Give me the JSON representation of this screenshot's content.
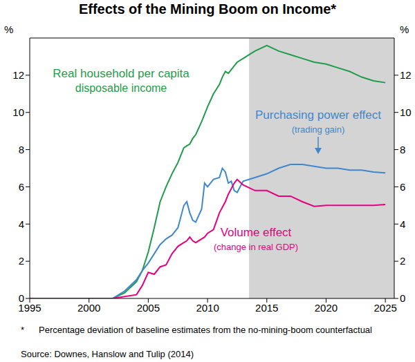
{
  "chart_data": {
    "type": "line",
    "title": "Effects of the Mining Boom on Income*",
    "y_label": "%",
    "footnote": {
      "mark": "*",
      "text": "Percentage deviation of baseline estimates from the no-mining-boom counterfactual"
    },
    "source": "Source: Downes, Hanslow and Tulip (2014)",
    "x": [
      1995,
      2002,
      2003,
      2004,
      2004.5,
      2005,
      2005.5,
      2006,
      2006.5,
      2007,
      2007.5,
      2008,
      2008.25,
      2008.5,
      2008.75,
      2009,
      2009.5,
      2009.75,
      2010,
      2010.5,
      2011,
      2011.25,
      2011.5,
      2011.75,
      2012,
      2012.25,
      2012.5,
      2013,
      2014,
      2015,
      2016,
      2017,
      2018,
      2019,
      2020,
      2021,
      2022,
      2023,
      2024,
      2025
    ],
    "xlim": [
      1995,
      2025.75
    ],
    "xticks": [
      1995,
      2000,
      2005,
      2010,
      2015,
      2020,
      2025
    ],
    "ylim": [
      0,
      14
    ],
    "yticks": [
      0,
      2,
      4,
      6,
      8,
      10,
      12
    ],
    "shade_from": 2013.5,
    "series": [
      {
        "label": [
          "Real household per capita",
          "disposable income"
        ],
        "color": "#1f9c4a",
        "values": [
          0,
          0,
          0.3,
          0.9,
          1.5,
          2.5,
          3.8,
          5.2,
          6.0,
          6.7,
          7.3,
          8.1,
          8.2,
          8.3,
          8.6,
          8.8,
          9.5,
          9.9,
          10.3,
          11.0,
          11.5,
          11.9,
          12.2,
          12.1,
          12.3,
          12.5,
          12.7,
          12.9,
          13.3,
          13.6,
          13.3,
          13.1,
          12.9,
          12.7,
          12.6,
          12.4,
          12.2,
          11.9,
          11.7,
          11.6
        ]
      },
      {
        "label": [
          "Purchasing power effect",
          "(trading gain)"
        ],
        "color": "#3f87cc",
        "values": [
          0,
          0,
          0.4,
          1.0,
          1.5,
          1.9,
          2.4,
          2.9,
          3.2,
          3.4,
          3.8,
          5.0,
          5.2,
          4.6,
          4.2,
          4.1,
          4.8,
          6.2,
          6.0,
          6.4,
          6.5,
          7.0,
          6.8,
          6.2,
          6.3,
          5.8,
          5.7,
          6.3,
          6.5,
          6.7,
          7.0,
          7.2,
          7.2,
          7.1,
          7.0,
          7.0,
          6.9,
          6.9,
          6.8,
          6.75
        ]
      },
      {
        "label": [
          "Volume effect",
          "(change in real GDP)"
        ],
        "color": "#e6007e",
        "values": [
          0,
          0,
          0.1,
          0.2,
          0.7,
          1.4,
          1.3,
          1.7,
          1.8,
          2.4,
          2.8,
          3.0,
          3.1,
          3.3,
          3.1,
          3.0,
          3.2,
          3.3,
          3.5,
          3.7,
          4.6,
          4.9,
          5.2,
          5.6,
          5.9,
          6.2,
          6.4,
          6.1,
          5.8,
          5.8,
          5.5,
          5.5,
          5.2,
          4.95,
          5.0,
          5.0,
          5.0,
          5.0,
          5.0,
          5.05
        ]
      }
    ]
  }
}
